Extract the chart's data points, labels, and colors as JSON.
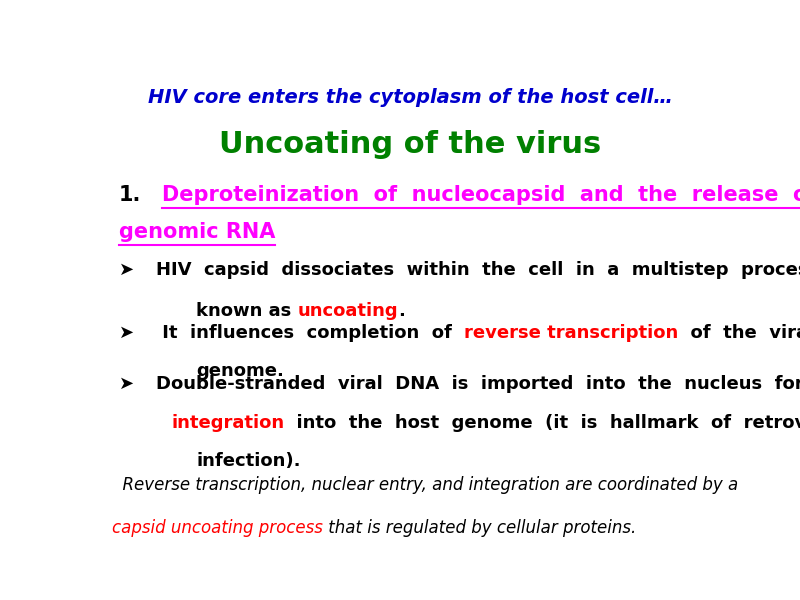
{
  "title_line1": "HIV core enters the cytoplasm of the host cell…",
  "title_line1_color": "#0000CD",
  "title_line2": "Uncoating of the virus",
  "title_line2_color": "#008000",
  "background_color": "#ffffff",
  "heading_number": "1.",
  "heading_color": "#000000",
  "heading_underline_color": "#FF00FF",
  "heading_line1": "Deproteinization  of  nucleocapsid  and  the  release  of",
  "heading_line2": "genomic RNA",
  "bullet_symbol": "➤",
  "bullet1_line1": "HIV  capsid  dissociates  within  the  cell  in  a  multistep  process",
  "bullet1_line2_pre": "known as ",
  "bullet1_line2_red": "uncoating",
  "bullet1_line2_post": ".",
  "bullet2_line1_pre": " It  influences  completion  of  ",
  "bullet2_line1_red": "reverse transcription",
  "bullet2_line1_post": "  of  the  viral",
  "bullet2_line2": "genome.",
  "bullet3_line1": "Double-stranded  viral  DNA  is  imported  into  the  nucleus  for",
  "bullet3_line2_red": "integration",
  "bullet3_line2_post": "  into  the  host  genome  (it  is  hallmark  of  retroviral",
  "bullet3_line3": "infection).",
  "footer1": "  Reverse transcription, nuclear entry, and integration are coordinated by a",
  "footer2_red": "capsid uncoating process",
  "footer2_post": " that is regulated by cellular proteins.",
  "red_color": "#FF0000",
  "black_color": "#000000",
  "magenta_color": "#FF00FF",
  "blue_color": "#0000CD",
  "green_color": "#008000"
}
